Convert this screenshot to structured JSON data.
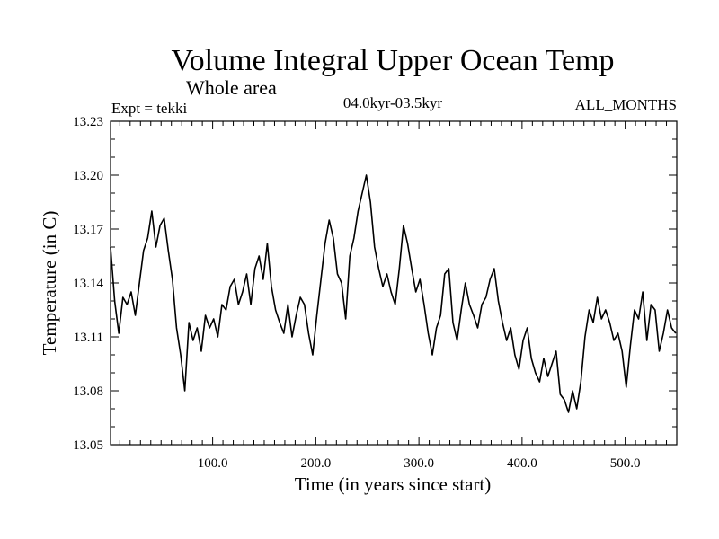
{
  "chart_data": {
    "type": "line",
    "title": "Volume Integral Upper Ocean Temp",
    "subtitle": "Whole area",
    "experiment_label": "Expt = tekki",
    "period_label": "04.0kyr-03.5kyr",
    "months_label": "ALL_MONTHS",
    "xlabel": "Time (in years since start)",
    "ylabel": "Temperature (in C)",
    "xlim": [
      1,
      550
    ],
    "ylim": [
      13.05,
      13.23
    ],
    "x_ticks": [
      100,
      200,
      300,
      400,
      500
    ],
    "x_tick_labels": [
      "100.0",
      "200.0",
      "300.0",
      "400.0",
      "500.0"
    ],
    "y_ticks": [
      13.05,
      13.08,
      13.11,
      13.14,
      13.17,
      13.2,
      13.23
    ],
    "y_tick_labels": [
      "13.05",
      "13.08",
      "13.11",
      "13.14",
      "13.17",
      "13.20",
      "13.23"
    ],
    "grid": false,
    "series": [
      {
        "name": "Volume integral upper ocean temperature",
        "color": "#000000",
        "x": [
          1,
          5,
          9,
          13,
          17,
          21,
          25,
          29,
          33,
          37,
          41,
          45,
          49,
          53,
          57,
          61,
          65,
          69,
          73,
          77,
          81,
          85,
          89,
          93,
          97,
          101,
          105,
          109,
          113,
          117,
          121,
          125,
          129,
          133,
          137,
          141,
          145,
          149,
          153,
          157,
          161,
          165,
          169,
          173,
          177,
          181,
          185,
          189,
          193,
          197,
          201,
          205,
          209,
          213,
          217,
          221,
          225,
          229,
          233,
          237,
          241,
          245,
          249,
          253,
          257,
          261,
          265,
          269,
          273,
          277,
          281,
          285,
          289,
          293,
          297,
          301,
          305,
          309,
          313,
          317,
          321,
          325,
          329,
          333,
          337,
          341,
          345,
          349,
          353,
          357,
          361,
          365,
          369,
          373,
          377,
          381,
          385,
          389,
          393,
          397,
          401,
          405,
          409,
          413,
          417,
          421,
          425,
          429,
          433,
          437,
          441,
          445,
          449,
          453,
          457,
          461,
          465,
          469,
          473,
          477,
          481,
          485,
          489,
          493,
          497,
          501,
          505,
          509,
          513,
          517,
          521,
          525,
          529,
          533,
          537,
          541,
          545,
          549
        ],
        "values": [
          13.16,
          13.13,
          13.112,
          13.132,
          13.128,
          13.135,
          13.122,
          13.14,
          13.158,
          13.165,
          13.18,
          13.16,
          13.172,
          13.176,
          13.158,
          13.142,
          13.115,
          13.1,
          13.08,
          13.118,
          13.108,
          13.115,
          13.102,
          13.122,
          13.115,
          13.12,
          13.11,
          13.128,
          13.125,
          13.138,
          13.142,
          13.128,
          13.135,
          13.145,
          13.128,
          13.148,
          13.155,
          13.142,
          13.162,
          13.138,
          13.125,
          13.118,
          13.112,
          13.128,
          13.11,
          13.122,
          13.132,
          13.128,
          13.112,
          13.1,
          13.122,
          13.142,
          13.162,
          13.175,
          13.165,
          13.145,
          13.14,
          13.12,
          13.155,
          13.165,
          13.18,
          13.19,
          13.2,
          13.185,
          13.16,
          13.148,
          13.138,
          13.145,
          13.135,
          13.128,
          13.148,
          13.172,
          13.162,
          13.148,
          13.135,
          13.142,
          13.128,
          13.112,
          13.1,
          13.115,
          13.122,
          13.145,
          13.148,
          13.118,
          13.108,
          13.125,
          13.14,
          13.128,
          13.122,
          13.115,
          13.128,
          13.132,
          13.142,
          13.148,
          13.13,
          13.118,
          13.108,
          13.115,
          13.1,
          13.092,
          13.108,
          13.115,
          13.098,
          13.09,
          13.085,
          13.098,
          13.088,
          13.095,
          13.102,
          13.078,
          13.075,
          13.068,
          13.08,
          13.07,
          13.085,
          13.11,
          13.125,
          13.118,
          13.132,
          13.12,
          13.125,
          13.118,
          13.108,
          13.112,
          13.102,
          13.082,
          13.105,
          13.125,
          13.12,
          13.135,
          13.108,
          13.128,
          13.125,
          13.102,
          13.112,
          13.125,
          13.115,
          13.112
        ]
      }
    ]
  }
}
